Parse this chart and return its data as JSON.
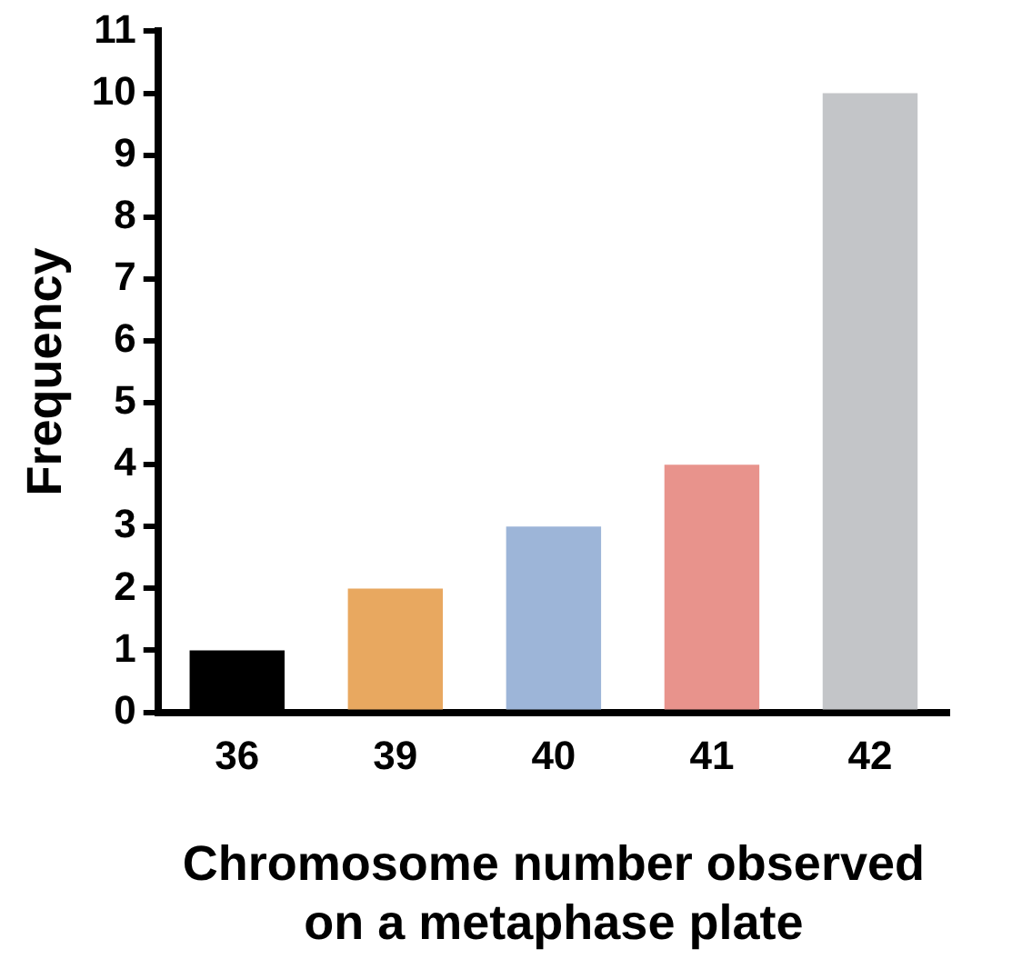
{
  "chart_data": {
    "type": "bar",
    "categories": [
      "36",
      "39",
      "40",
      "41",
      "42"
    ],
    "values": [
      1,
      2,
      3,
      4,
      10
    ],
    "colors": [
      "#000000",
      "#e8a860",
      "#9db5d8",
      "#e8938c",
      "#c3c5c8"
    ],
    "xlabel": "Chromosome number observed on a metaphase plate",
    "ylabel": "Frequency",
    "ylim": [
      0,
      11
    ],
    "yticks": [
      0,
      1,
      2,
      3,
      4,
      5,
      6,
      7,
      8,
      9,
      10,
      11
    ],
    "grid": false,
    "legend": false
  }
}
